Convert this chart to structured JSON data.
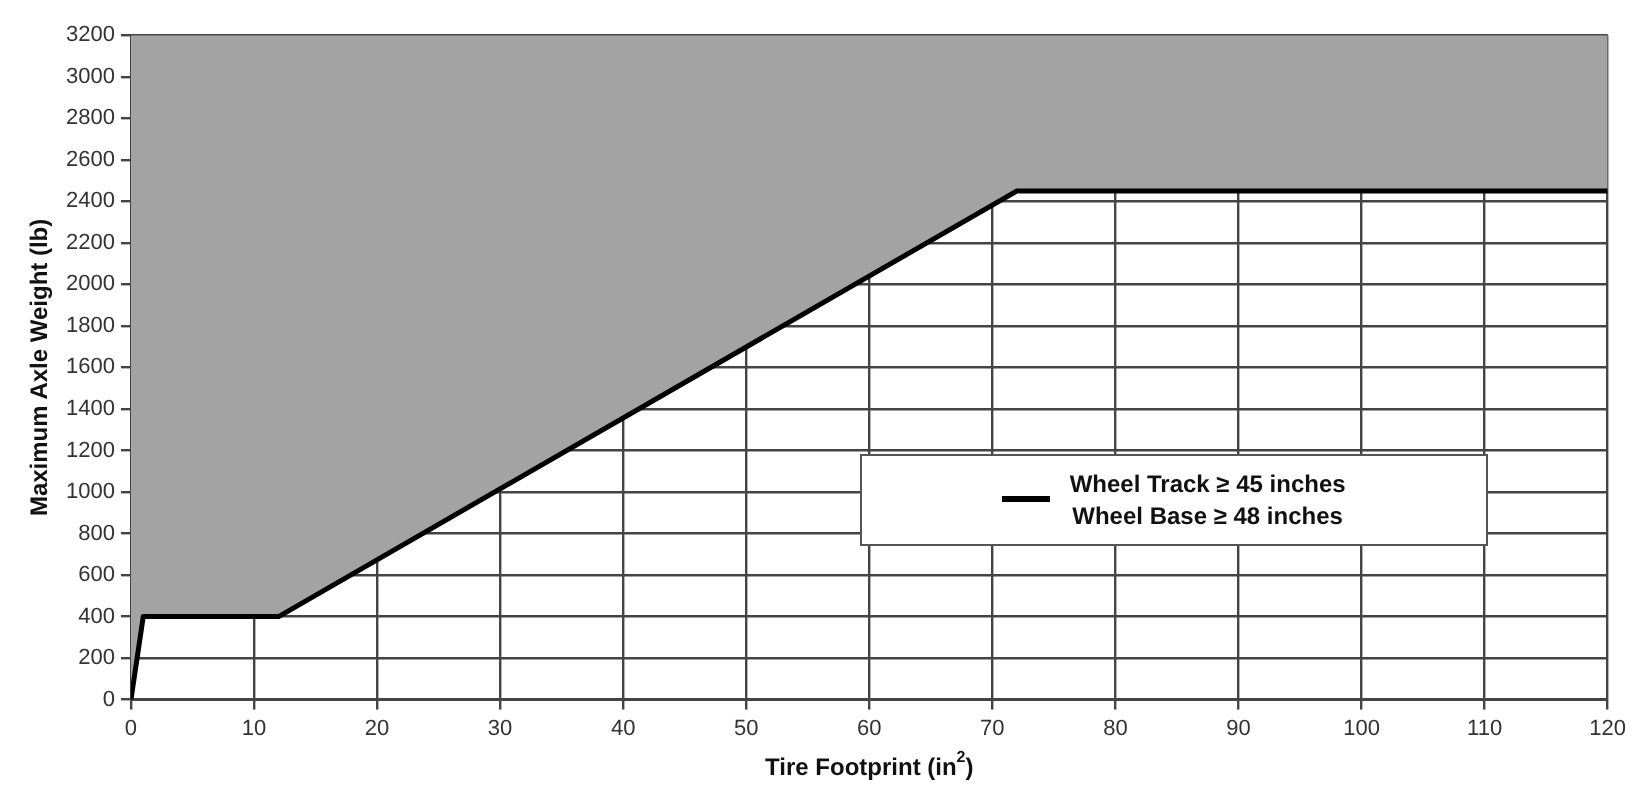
{
  "chart_data": {
    "type": "line",
    "xlabel": "Tire Footprint (in$^{2}$)",
    "ylabel": "Maximum Axle Weight (lb)",
    "series": [
      {
        "name": "Wheel Track ≥ 45 inches\nWheel Base ≥ 48 inches",
        "color": "#000000",
        "x": [
          0,
          1,
          12,
          72,
          120
        ],
        "values": [
          0,
          400,
          400,
          2450,
          2450
        ]
      }
    ],
    "xlim": [
      0,
      120
    ],
    "xticks": [
      0,
      10,
      20,
      30,
      40,
      50,
      60,
      70,
      80,
      90,
      100,
      110,
      120
    ],
    "ylim": [
      0,
      3200
    ],
    "yticks": [
      0,
      200,
      400,
      600,
      800,
      1000,
      1200,
      1400,
      1600,
      1800,
      2000,
      2200,
      2400,
      2600,
      2800,
      3000,
      3200
    ],
    "grid": true,
    "legend": "right",
    "marker": "none",
    "line_style": "solid"
  }
}
